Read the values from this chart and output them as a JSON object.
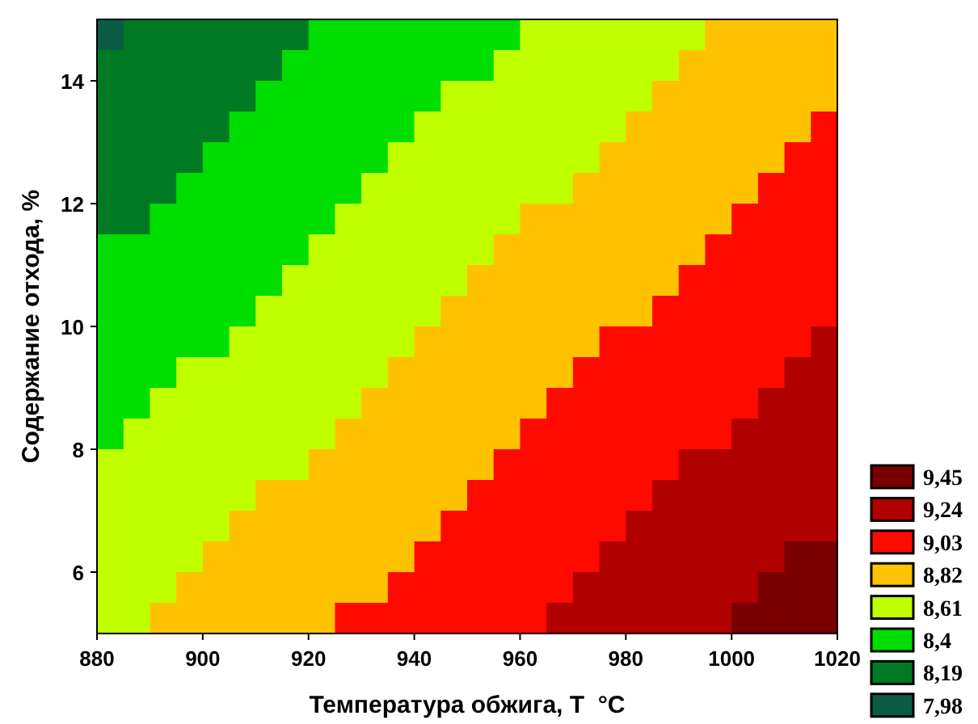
{
  "chart_data": {
    "type": "heatmap",
    "xlabel": "Температура обжига, T  °C",
    "ylabel": "Содержание отхода, %",
    "xlim": [
      880,
      1020
    ],
    "ylim": [
      5,
      15
    ],
    "xticks": [
      880,
      900,
      920,
      940,
      960,
      980,
      1000,
      1020
    ],
    "yticks": [
      6,
      8,
      10,
      12,
      14
    ],
    "cticks": [
      {
        "value": 9.45,
        "label": "9,45"
      },
      {
        "value": 9.24,
        "label": "9,24"
      },
      {
        "value": 9.03,
        "label": "9,03"
      },
      {
        "value": 8.82,
        "label": "8,82"
      },
      {
        "value": 8.61,
        "label": "8,61"
      },
      {
        "value": 8.4,
        "label": "8,4"
      },
      {
        "value": 8.19,
        "label": "8,19"
      },
      {
        "value": 7.98,
        "label": "7,98"
      }
    ],
    "colors": [
      "#7a0000",
      "#b00000",
      "#ff0a00",
      "#ffc200",
      "#bfff00",
      "#00dd00",
      "#007a22",
      "#0a5c44"
    ],
    "cells": [
      [
        7.98,
        8.19,
        8.19,
        8.19,
        8.19,
        8.19,
        8.19,
        8.19,
        8.4,
        8.4,
        8.4,
        8.4,
        8.4,
        8.4,
        8.4,
        8.4,
        8.61,
        8.61,
        8.61,
        8.61,
        8.61,
        8.61,
        8.61,
        8.82,
        8.82,
        8.82,
        8.82,
        8.82
      ],
      [
        8.19,
        8.19,
        8.19,
        8.19,
        8.19,
        8.19,
        8.19,
        8.4,
        8.4,
        8.4,
        8.4,
        8.4,
        8.4,
        8.4,
        8.4,
        8.61,
        8.61,
        8.61,
        8.61,
        8.61,
        8.61,
        8.61,
        8.82,
        8.82,
        8.82,
        8.82,
        8.82,
        8.82
      ],
      [
        8.19,
        8.19,
        8.19,
        8.19,
        8.19,
        8.19,
        8.4,
        8.4,
        8.4,
        8.4,
        8.4,
        8.4,
        8.4,
        8.61,
        8.61,
        8.61,
        8.61,
        8.61,
        8.61,
        8.61,
        8.61,
        8.82,
        8.82,
        8.82,
        8.82,
        8.82,
        8.82,
        8.82
      ],
      [
        8.19,
        8.19,
        8.19,
        8.19,
        8.19,
        8.4,
        8.4,
        8.4,
        8.4,
        8.4,
        8.4,
        8.4,
        8.61,
        8.61,
        8.61,
        8.61,
        8.61,
        8.61,
        8.61,
        8.61,
        8.82,
        8.82,
        8.82,
        8.82,
        8.82,
        8.82,
        8.82,
        9.03
      ],
      [
        8.19,
        8.19,
        8.19,
        8.19,
        8.4,
        8.4,
        8.4,
        8.4,
        8.4,
        8.4,
        8.4,
        8.61,
        8.61,
        8.61,
        8.61,
        8.61,
        8.61,
        8.61,
        8.61,
        8.82,
        8.82,
        8.82,
        8.82,
        8.82,
        8.82,
        8.82,
        9.03,
        9.03
      ],
      [
        8.19,
        8.19,
        8.19,
        8.4,
        8.4,
        8.4,
        8.4,
        8.4,
        8.4,
        8.4,
        8.61,
        8.61,
        8.61,
        8.61,
        8.61,
        8.61,
        8.61,
        8.61,
        8.82,
        8.82,
        8.82,
        8.82,
        8.82,
        8.82,
        8.82,
        9.03,
        9.03,
        9.03
      ],
      [
        8.19,
        8.19,
        8.4,
        8.4,
        8.4,
        8.4,
        8.4,
        8.4,
        8.4,
        8.61,
        8.61,
        8.61,
        8.61,
        8.61,
        8.61,
        8.61,
        8.82,
        8.82,
        8.82,
        8.82,
        8.82,
        8.82,
        8.82,
        8.82,
        9.03,
        9.03,
        9.03,
        9.03
      ],
      [
        8.4,
        8.4,
        8.4,
        8.4,
        8.4,
        8.4,
        8.4,
        8.4,
        8.61,
        8.61,
        8.61,
        8.61,
        8.61,
        8.61,
        8.61,
        8.82,
        8.82,
        8.82,
        8.82,
        8.82,
        8.82,
        8.82,
        8.82,
        9.03,
        9.03,
        9.03,
        9.03,
        9.03
      ],
      [
        8.4,
        8.4,
        8.4,
        8.4,
        8.4,
        8.4,
        8.4,
        8.61,
        8.61,
        8.61,
        8.61,
        8.61,
        8.61,
        8.61,
        8.82,
        8.82,
        8.82,
        8.82,
        8.82,
        8.82,
        8.82,
        8.82,
        9.03,
        9.03,
        9.03,
        9.03,
        9.03,
        9.03
      ],
      [
        8.4,
        8.4,
        8.4,
        8.4,
        8.4,
        8.4,
        8.61,
        8.61,
        8.61,
        8.61,
        8.61,
        8.61,
        8.61,
        8.82,
        8.82,
        8.82,
        8.82,
        8.82,
        8.82,
        8.82,
        8.82,
        9.03,
        9.03,
        9.03,
        9.03,
        9.03,
        9.03,
        9.03
      ],
      [
        8.4,
        8.4,
        8.4,
        8.4,
        8.4,
        8.61,
        8.61,
        8.61,
        8.61,
        8.61,
        8.61,
        8.61,
        8.82,
        8.82,
        8.82,
        8.82,
        8.82,
        8.82,
        8.82,
        9.03,
        9.03,
        9.03,
        9.03,
        9.03,
        9.03,
        9.03,
        9.03,
        9.24
      ],
      [
        8.4,
        8.4,
        8.4,
        8.61,
        8.61,
        8.61,
        8.61,
        8.61,
        8.61,
        8.61,
        8.61,
        8.82,
        8.82,
        8.82,
        8.82,
        8.82,
        8.82,
        8.82,
        9.03,
        9.03,
        9.03,
        9.03,
        9.03,
        9.03,
        9.03,
        9.03,
        9.24,
        9.24
      ],
      [
        8.4,
        8.4,
        8.61,
        8.61,
        8.61,
        8.61,
        8.61,
        8.61,
        8.61,
        8.61,
        8.82,
        8.82,
        8.82,
        8.82,
        8.82,
        8.82,
        8.82,
        9.03,
        9.03,
        9.03,
        9.03,
        9.03,
        9.03,
        9.03,
        9.03,
        9.24,
        9.24,
        9.24
      ],
      [
        8.4,
        8.61,
        8.61,
        8.61,
        8.61,
        8.61,
        8.61,
        8.61,
        8.61,
        8.82,
        8.82,
        8.82,
        8.82,
        8.82,
        8.82,
        8.82,
        9.03,
        9.03,
        9.03,
        9.03,
        9.03,
        9.03,
        9.03,
        9.03,
        9.24,
        9.24,
        9.24,
        9.24
      ],
      [
        8.61,
        8.61,
        8.61,
        8.61,
        8.61,
        8.61,
        8.61,
        8.61,
        8.82,
        8.82,
        8.82,
        8.82,
        8.82,
        8.82,
        8.82,
        9.03,
        9.03,
        9.03,
        9.03,
        9.03,
        9.03,
        9.03,
        9.24,
        9.24,
        9.24,
        9.24,
        9.24,
        9.24
      ],
      [
        8.61,
        8.61,
        8.61,
        8.61,
        8.61,
        8.61,
        8.82,
        8.82,
        8.82,
        8.82,
        8.82,
        8.82,
        8.82,
        8.82,
        9.03,
        9.03,
        9.03,
        9.03,
        9.03,
        9.03,
        9.03,
        9.24,
        9.24,
        9.24,
        9.24,
        9.24,
        9.24,
        9.24
      ],
      [
        8.61,
        8.61,
        8.61,
        8.61,
        8.61,
        8.82,
        8.82,
        8.82,
        8.82,
        8.82,
        8.82,
        8.82,
        8.82,
        9.03,
        9.03,
        9.03,
        9.03,
        9.03,
        9.03,
        9.03,
        9.24,
        9.24,
        9.24,
        9.24,
        9.24,
        9.24,
        9.24,
        9.24
      ],
      [
        8.61,
        8.61,
        8.61,
        8.61,
        8.82,
        8.82,
        8.82,
        8.82,
        8.82,
        8.82,
        8.82,
        8.82,
        9.03,
        9.03,
        9.03,
        9.03,
        9.03,
        9.03,
        9.03,
        9.24,
        9.24,
        9.24,
        9.24,
        9.24,
        9.24,
        9.24,
        9.45,
        9.45
      ],
      [
        8.61,
        8.61,
        8.61,
        8.82,
        8.82,
        8.82,
        8.82,
        8.82,
        8.82,
        8.82,
        8.82,
        9.03,
        9.03,
        9.03,
        9.03,
        9.03,
        9.03,
        9.03,
        9.24,
        9.24,
        9.24,
        9.24,
        9.24,
        9.24,
        9.24,
        9.45,
        9.45,
        9.45
      ],
      [
        8.61,
        8.61,
        8.82,
        8.82,
        8.82,
        8.82,
        8.82,
        8.82,
        8.82,
        9.03,
        9.03,
        9.03,
        9.03,
        9.03,
        9.03,
        9.03,
        9.03,
        9.24,
        9.24,
        9.24,
        9.24,
        9.24,
        9.24,
        9.24,
        9.45,
        9.45,
        9.45,
        9.45
      ]
    ]
  }
}
